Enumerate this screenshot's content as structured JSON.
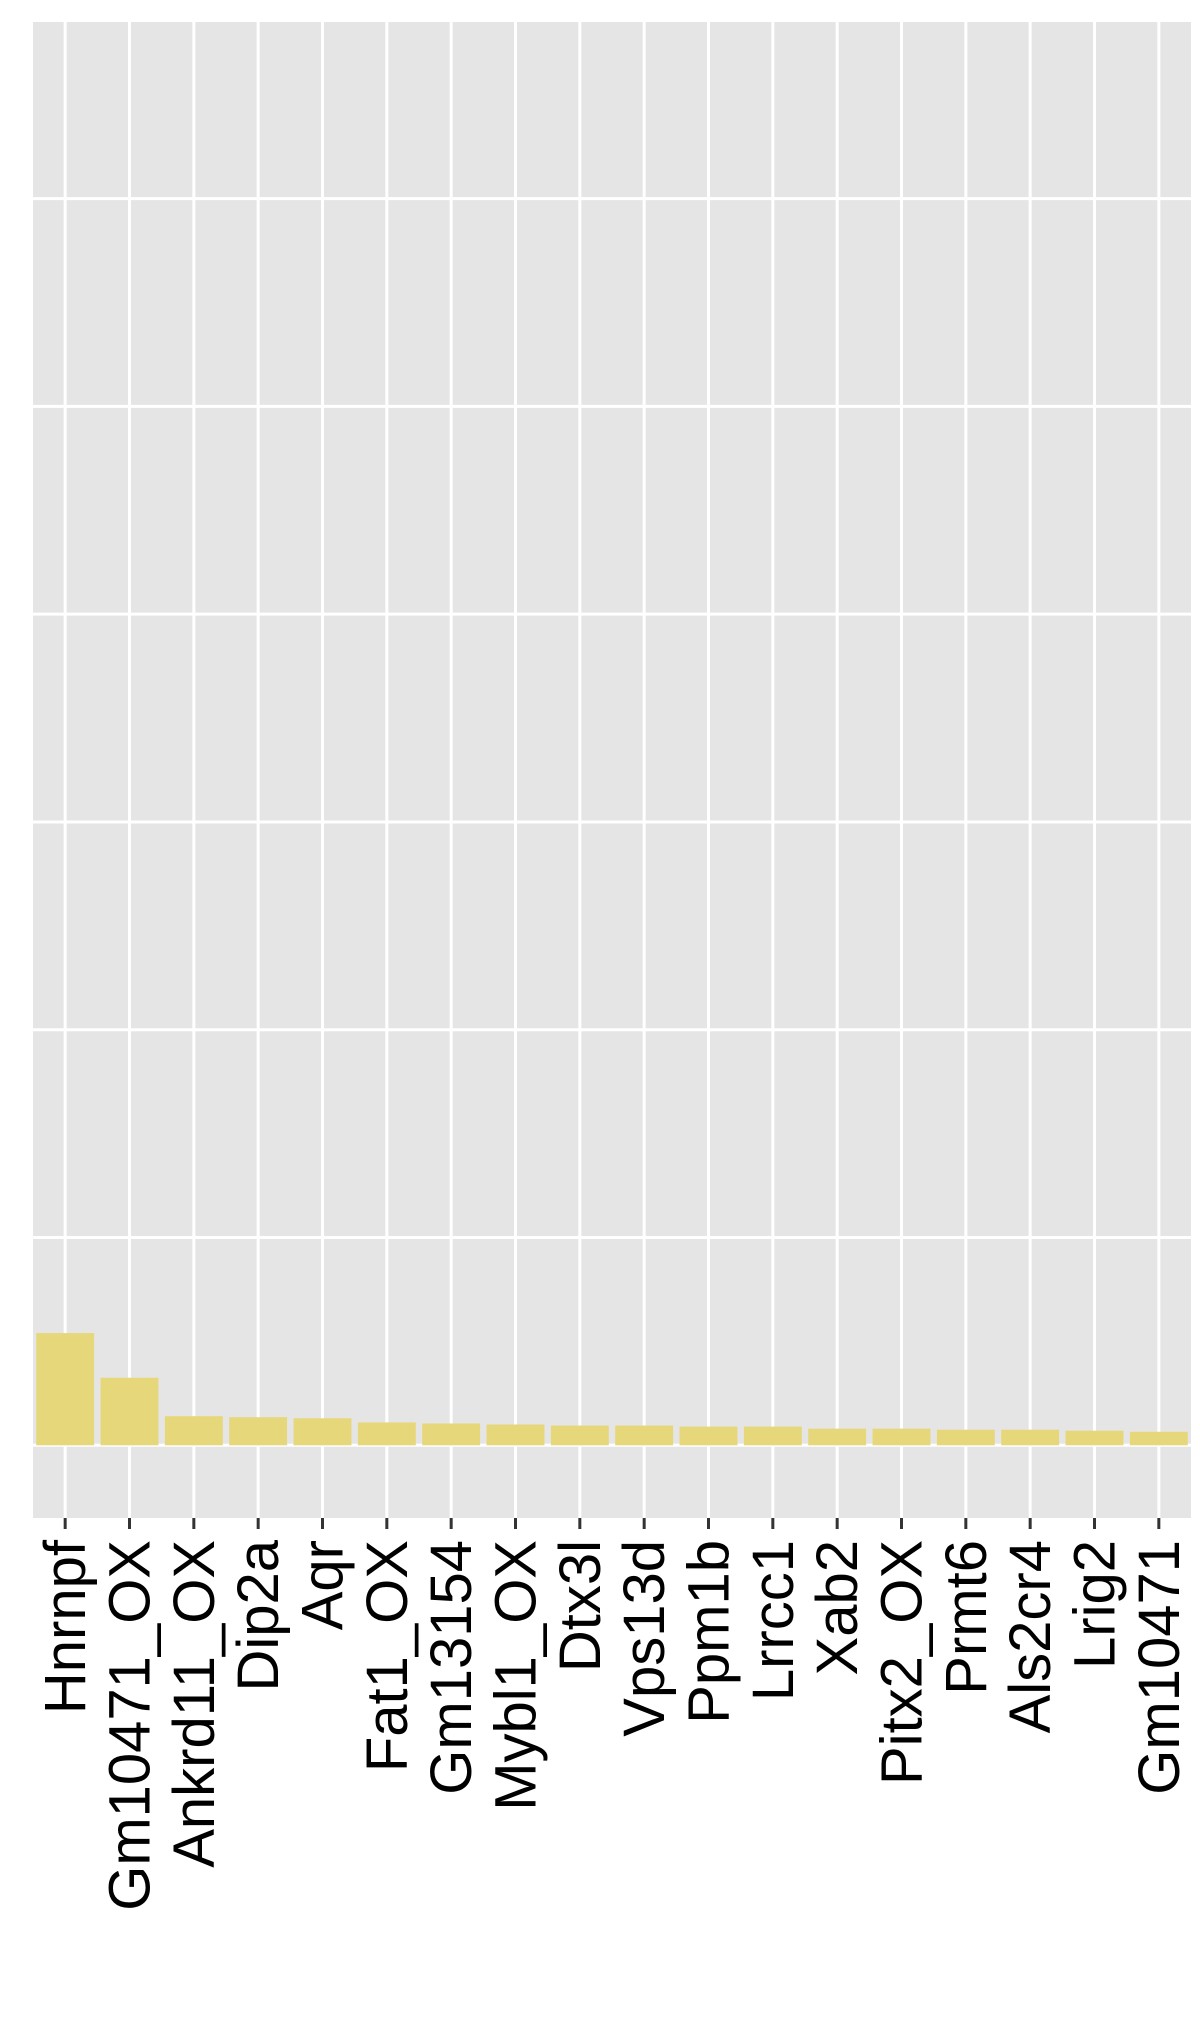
{
  "colors": {
    "panel_bg": "#e5e5e5",
    "grid": "#ffffff",
    "bar_fill": "#e6d77a",
    "tick": "#333333",
    "label_default": "#000000",
    "label_highlight": "#ff0000"
  },
  "chart_data": {
    "type": "bar",
    "title": "",
    "xlabel": "",
    "ylabel": "",
    "grid": true,
    "legend": "none",
    "ylim": [
      -7,
      137
    ],
    "y_gridlines": [
      0,
      20,
      40,
      60,
      80,
      100,
      120
    ],
    "highlighted_categories": [
      "Fat1_OX"
    ],
    "categories": [
      "Hnrnpf",
      "Gm10471_OX",
      "Ankrd11_OX",
      "Dip2a",
      "Aqr",
      "Fat1_OX",
      "Gm13154",
      "Mybl1_OX",
      "Dtx3l",
      "Vps13d",
      "Ppm1b",
      "Lrrcc1",
      "Xab2",
      "Pitx2_OX",
      "Prmt6",
      "Als2cr4",
      "Lrig2",
      "Gm10471"
    ],
    "values": [
      10.8,
      6.5,
      2.8,
      2.7,
      2.6,
      2.2,
      2.1,
      2.0,
      1.9,
      1.9,
      1.8,
      1.8,
      1.6,
      1.6,
      1.5,
      1.5,
      1.4,
      1.3
    ]
  }
}
